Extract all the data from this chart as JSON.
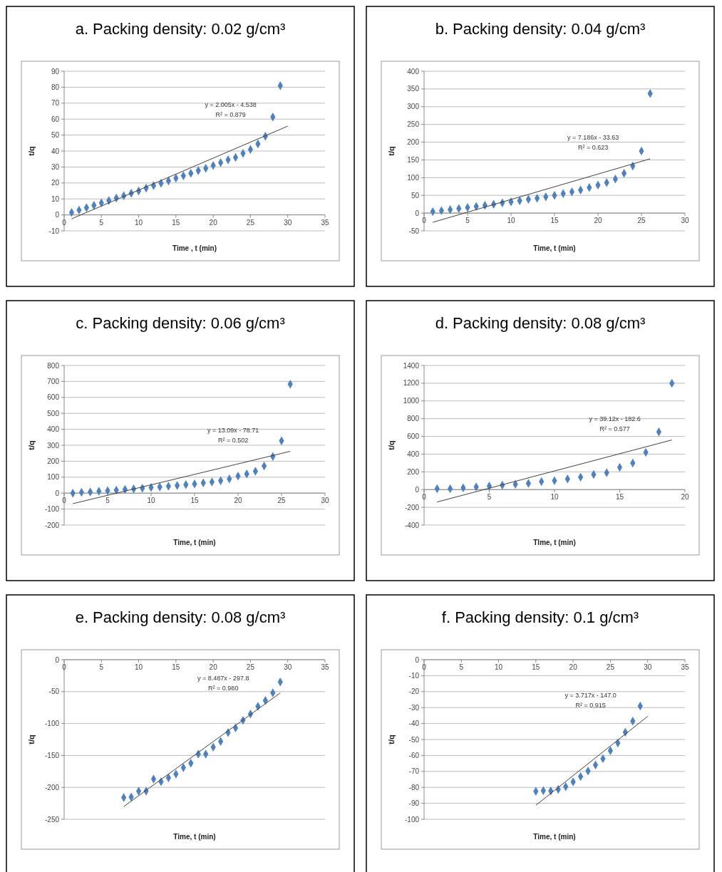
{
  "chart_data": [
    {
      "type": "scatter",
      "title": "a.   Packing density: 0.02 g/cm³",
      "xlabel": "Time , t (min)",
      "ylabel": "t/q",
      "xlim": [
        0,
        35
      ],
      "xticks": [
        0,
        5,
        10,
        15,
        20,
        25,
        30,
        35
      ],
      "ylim": [
        -10,
        90
      ],
      "yticks": [
        -10,
        0,
        10,
        20,
        30,
        40,
        50,
        60,
        70,
        80,
        90
      ],
      "grid": "y",
      "series": [
        {
          "color": "#4f81bd",
          "marker": "diamond",
          "x": [
            1,
            2,
            3,
            4,
            5,
            6,
            7,
            8,
            9,
            10,
            11,
            12,
            13,
            14,
            15,
            16,
            17,
            18,
            19,
            20,
            21,
            22,
            23,
            24,
            25,
            26,
            27,
            28,
            29
          ],
          "values": [
            1.5,
            3,
            4.5,
            6,
            7.5,
            9,
            10.5,
            12,
            13.5,
            15,
            16.8,
            18.3,
            19.8,
            21.3,
            23,
            24.5,
            26,
            27.7,
            29.2,
            31,
            32.7,
            34.5,
            36,
            38.6,
            41,
            44.5,
            49.3,
            61.3,
            81
          ]
        },
        {
          "type": "line",
          "marker": "none",
          "color": "#404040",
          "x": [
            1,
            30
          ],
          "values": [
            -2.5,
            55.6
          ]
        }
      ],
      "annotations": [
        "y = 2.005x - 4.538",
        "R² = 0.879"
      ]
    },
    {
      "type": "scatter",
      "title": "b.   Packing density: 0.04 g/cm³",
      "xlabel": "Time, t (min)",
      "ylabel": "t/q",
      "xlim": [
        0,
        30
      ],
      "xticks": [
        0,
        5,
        10,
        15,
        20,
        25,
        30
      ],
      "ylim": [
        -50,
        400
      ],
      "yticks": [
        -50,
        0,
        50,
        100,
        150,
        200,
        250,
        300,
        350,
        400
      ],
      "grid": "y",
      "series": [
        {
          "color": "#4f81bd",
          "marker": "diamond",
          "x": [
            1,
            2,
            3,
            4,
            5,
            6,
            7,
            8,
            9,
            10,
            11,
            12,
            13,
            14,
            15,
            16,
            17,
            18,
            19,
            20,
            21,
            22,
            23,
            24,
            25,
            26
          ],
          "values": [
            4,
            7,
            10,
            13,
            16,
            19,
            22,
            25,
            29,
            32,
            35,
            39,
            42,
            46,
            50,
            55,
            60,
            65,
            72,
            79,
            86,
            96,
            112,
            133,
            175,
            337
          ]
        },
        {
          "type": "line",
          "marker": "none",
          "color": "#404040",
          "x": [
            1,
            26
          ],
          "values": [
            -26,
            153
          ]
        }
      ],
      "annotations": [
        "y = 7.186x - 33.63",
        "R² = 0.623"
      ]
    },
    {
      "type": "scatter",
      "title": "c.   Packing density: 0.06 g/cm³",
      "xlabel": "Time, t (min)",
      "ylabel": "t/q",
      "xlim": [
        0,
        30
      ],
      "xticks": [
        0,
        5,
        10,
        15,
        20,
        25,
        30
      ],
      "ylim": [
        -200,
        800
      ],
      "yticks": [
        -200,
        -100,
        0,
        100,
        200,
        300,
        400,
        500,
        600,
        700,
        800
      ],
      "grid": "y",
      "series": [
        {
          "color": "#4f81bd",
          "marker": "diamond",
          "x": [
            1,
            2,
            3,
            4,
            5,
            6,
            7,
            8,
            9,
            10,
            11,
            12,
            13,
            14,
            15,
            16,
            17,
            18,
            19,
            20,
            21,
            22,
            23,
            24,
            25,
            26
          ],
          "values": [
            0,
            5,
            8,
            12,
            15,
            19,
            23,
            27,
            31,
            35,
            39,
            43,
            48,
            53,
            58,
            64,
            70,
            78,
            89,
            107,
            120,
            137,
            170,
            230,
            328,
            683
          ]
        },
        {
          "type": "line",
          "marker": "none",
          "color": "#404040",
          "x": [
            1,
            26
          ],
          "values": [
            -66,
            262
          ]
        }
      ],
      "annotations": [
        "y = 13.09x - 78.71",
        "R² = 0.502"
      ]
    },
    {
      "type": "scatter",
      "title": "d.   Packing density: 0.08 g/cm³",
      "xlabel": "TIme, t (min)",
      "ylabel": "t/q",
      "xlim": [
        0,
        20
      ],
      "xticks": [
        0,
        5,
        10,
        15,
        20
      ],
      "ylim": [
        -400,
        1400
      ],
      "yticks": [
        -400,
        -200,
        0,
        200,
        400,
        600,
        800,
        1000,
        1200,
        1400
      ],
      "grid": "y",
      "series": [
        {
          "color": "#4f81bd",
          "marker": "diamond",
          "x": [
            1,
            2,
            3,
            4,
            5,
            6,
            7,
            8,
            9,
            10,
            11,
            12,
            13,
            14,
            15,
            16,
            17,
            18,
            19
          ],
          "values": [
            10,
            10,
            20,
            30,
            40,
            50,
            60,
            70,
            90,
            100,
            120,
            140,
            170,
            190,
            250,
            300,
            420,
            650,
            1200
          ]
        },
        {
          "type": "line",
          "marker": "none",
          "color": "#404040",
          "x": [
            1,
            19
          ],
          "values": [
            -140,
            560
          ]
        }
      ],
      "annotations": [
        "y = 39.12x - 182.6",
        "R² = 0.577"
      ]
    },
    {
      "type": "scatter",
      "title": "e.   Packing density: 0.08 g/cm³",
      "xlabel": "Time, t (min)",
      "ylabel": "t/q",
      "xlim": [
        0,
        35
      ],
      "xticks": [
        0,
        5,
        10,
        15,
        20,
        25,
        30,
        35
      ],
      "ylim": [
        -250,
        0
      ],
      "yticks": [
        -250,
        -200,
        -150,
        -100,
        -50,
        0
      ],
      "grid": "y",
      "series": [
        {
          "color": "#4f81bd",
          "marker": "diamond",
          "x": [
            8,
            9,
            10,
            11,
            12,
            13,
            14,
            15,
            16,
            17,
            18,
            19,
            20,
            21,
            22,
            23,
            24,
            25,
            26,
            27,
            28,
            29
          ],
          "values": [
            -216,
            -215,
            -206,
            -206,
            -187,
            -191,
            -185,
            -179,
            -169,
            -162,
            -148,
            -148,
            -137,
            -128,
            -114,
            -107,
            -95,
            -85,
            -73,
            -64,
            -52,
            -35
          ]
        },
        {
          "type": "line",
          "marker": "none",
          "color": "#404040",
          "x": [
            8,
            29
          ],
          "values": [
            -230,
            -52
          ]
        }
      ],
      "annotations": [
        "y = 8.487x - 297.8",
        "R² = 0.980"
      ]
    },
    {
      "type": "scatter",
      "title": "f.   Packing density: 0.1 g/cm³",
      "xlabel": "Time, t (min)",
      "ylabel": "t/q",
      "xlim": [
        0,
        35
      ],
      "xticks": [
        0,
        5,
        10,
        15,
        20,
        25,
        30,
        35
      ],
      "ylim": [
        -100,
        0
      ],
      "yticks": [
        -100,
        -90,
        -80,
        -70,
        -60,
        -50,
        -40,
        -30,
        -20,
        -10,
        0
      ],
      "grid": "y",
      "series": [
        {
          "color": "#4f81bd",
          "marker": "diamond",
          "x": [
            15,
            16,
            17,
            18,
            19,
            20,
            21,
            22,
            23,
            24,
            25,
            26,
            27,
            28,
            29
          ],
          "values": [
            -82.5,
            -82,
            -82.3,
            -81.2,
            -79.6,
            -76.6,
            -73.2,
            -69.8,
            -66,
            -62,
            -57,
            -52.2,
            -45.4,
            -38.5,
            -29
          ]
        },
        {
          "type": "line",
          "marker": "none",
          "color": "#404040",
          "x": [
            15,
            30
          ],
          "values": [
            -91.2,
            -35.5
          ]
        }
      ],
      "annotations": [
        "y = 3.717x - 147.0",
        "R² = 0.915"
      ]
    }
  ]
}
